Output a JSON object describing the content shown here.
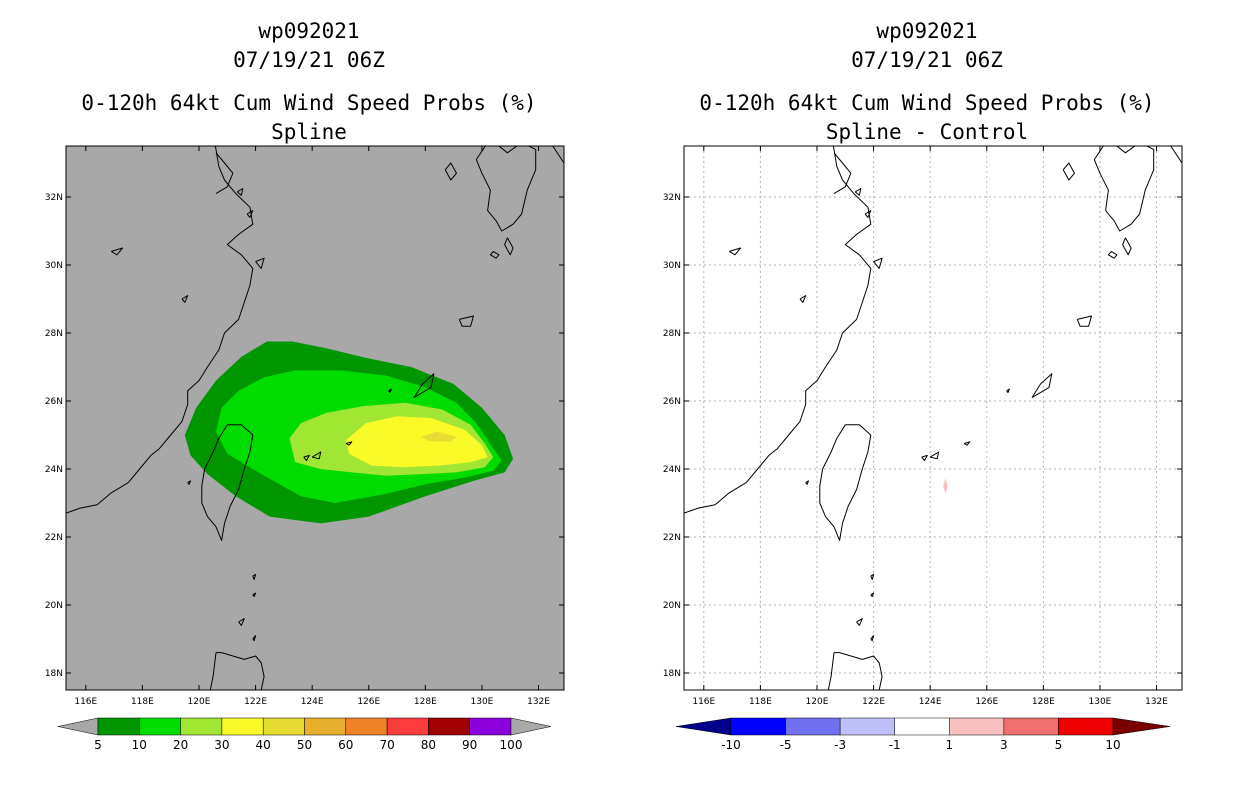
{
  "panels": [
    {
      "id": "left",
      "title_lines": [
        "wp092021",
        "07/19/21 06Z",
        "0-120h 64kt Cum Wind Speed Probs (%)",
        "Spline"
      ],
      "background": "#a8a8a8",
      "grid": false,
      "lat_ticks": [
        "32N",
        "30N",
        "28N",
        "26N",
        "24N",
        "22N",
        "20N",
        "18N"
      ],
      "lon_ticks": [
        "116E",
        "118E",
        "120E",
        "122E",
        "124E",
        "126E",
        "128E",
        "130E",
        "132E"
      ],
      "colorbar": {
        "colors": [
          "#009600",
          "#00dc00",
          "#a0e632",
          "#fafa28",
          "#e6dc32",
          "#e6af2d",
          "#f08228",
          "#fa3c3c",
          "#a00000",
          "#8c00dc"
        ],
        "end_left": "#a8a8a8",
        "end_right": "#a8a8a8",
        "labels": [
          "5",
          "10",
          "20",
          "30",
          "40",
          "50",
          "60",
          "70",
          "80",
          "90",
          "100"
        ]
      }
    },
    {
      "id": "right",
      "title_lines": [
        "wp092021",
        "07/19/21 06Z",
        "0-120h 64kt Cum Wind Speed Probs (%)",
        "Spline - Control"
      ],
      "background": "#ffffff",
      "grid": true,
      "lat_ticks": [
        "32N",
        "30N",
        "28N",
        "26N",
        "24N",
        "22N",
        "20N",
        "18N"
      ],
      "lon_ticks": [
        "116E",
        "118E",
        "120E",
        "122E",
        "124E",
        "126E",
        "128E",
        "130E",
        "132E"
      ],
      "colorbar": {
        "colors": [
          "#0000ff",
          "#7070f0",
          "#c0c0f8",
          "#ffffff",
          "#f8c0c0",
          "#f07070",
          "#f00000"
        ],
        "end_left": "#00008c",
        "end_right": "#780000",
        "labels": [
          "-10",
          "-5",
          "-3",
          "-1",
          "1",
          "3",
          "5",
          "10"
        ]
      }
    }
  ],
  "chart_data": {
    "type": "heatmap",
    "storm_id": "wp092021",
    "valid_time": "07/19/21 06Z",
    "product": "0-120h 64kt Cum Wind Speed Probs (%)",
    "lat_range": [
      17.5,
      33.5
    ],
    "lon_range": [
      115.3,
      132.9
    ],
    "contour_levels_pct": [
      5,
      10,
      20,
      30,
      40,
      50,
      60,
      70,
      80,
      90,
      100
    ],
    "left_panel": {
      "title": "Spline",
      "contours": [
        {
          "level": 5,
          "polygon": [
            [
              119.5,
              25.0
            ],
            [
              119.9,
              25.8
            ],
            [
              120.6,
              26.6
            ],
            [
              121.5,
              27.3
            ],
            [
              122.4,
              27.75
            ],
            [
              123.3,
              27.75
            ],
            [
              124.5,
              27.55
            ],
            [
              126.0,
              27.25
            ],
            [
              127.5,
              27.0
            ],
            [
              129.0,
              26.5
            ],
            [
              130.0,
              25.8
            ],
            [
              130.8,
              25.0
            ],
            [
              131.1,
              24.3
            ],
            [
              130.8,
              23.9
            ],
            [
              129.7,
              23.65
            ],
            [
              128.0,
              23.2
            ],
            [
              126.0,
              22.6
            ],
            [
              124.3,
              22.4
            ],
            [
              122.5,
              22.6
            ],
            [
              121.3,
              23.2
            ],
            [
              120.3,
              23.85
            ],
            [
              119.7,
              24.4
            ]
          ]
        },
        {
          "level": 10,
          "polygon": [
            [
              120.6,
              25.1
            ],
            [
              120.8,
              25.8
            ],
            [
              121.4,
              26.3
            ],
            [
              122.3,
              26.7
            ],
            [
              123.4,
              26.9
            ],
            [
              125.0,
              26.9
            ],
            [
              126.6,
              26.75
            ],
            [
              128.0,
              26.4
            ],
            [
              129.1,
              25.95
            ],
            [
              129.8,
              25.35
            ],
            [
              130.4,
              24.6
            ],
            [
              130.7,
              24.25
            ],
            [
              130.4,
              23.95
            ],
            [
              129.4,
              23.75
            ],
            [
              128.0,
              23.55
            ],
            [
              126.5,
              23.25
            ],
            [
              124.8,
              23.0
            ],
            [
              123.6,
              23.2
            ],
            [
              122.3,
              23.8
            ],
            [
              121.0,
              24.45
            ]
          ]
        },
        {
          "level": 20,
          "polygon": [
            [
              123.2,
              24.9
            ],
            [
              123.6,
              25.35
            ],
            [
              124.5,
              25.65
            ],
            [
              125.8,
              25.85
            ],
            [
              127.3,
              25.95
            ],
            [
              128.6,
              25.75
            ],
            [
              129.6,
              25.3
            ],
            [
              130.1,
              24.75
            ],
            [
              130.4,
              24.35
            ],
            [
              130.1,
              24.05
            ],
            [
              129.1,
              23.9
            ],
            [
              127.9,
              23.85
            ],
            [
              126.6,
              23.8
            ],
            [
              125.4,
              23.9
            ],
            [
              124.3,
              24.0
            ],
            [
              123.4,
              24.2
            ]
          ]
        },
        {
          "level": 30,
          "polygon": [
            [
              125.2,
              24.85
            ],
            [
              125.9,
              25.35
            ],
            [
              127.0,
              25.55
            ],
            [
              128.2,
              25.5
            ],
            [
              129.4,
              25.15
            ],
            [
              130.0,
              24.7
            ],
            [
              130.2,
              24.35
            ],
            [
              129.6,
              24.2
            ],
            [
              128.5,
              24.1
            ],
            [
              127.2,
              24.05
            ],
            [
              126.1,
              24.1
            ],
            [
              125.3,
              24.45
            ]
          ]
        },
        {
          "level": 40,
          "polygon": [
            [
              127.85,
              24.95
            ],
            [
              128.4,
              25.1
            ],
            [
              129.1,
              24.95
            ],
            [
              128.9,
              24.8
            ],
            [
              128.1,
              24.82
            ]
          ]
        }
      ]
    },
    "right_panel": {
      "title": "Spline - Control",
      "contours": [
        {
          "level": 1,
          "polygon": [
            [
              124.54,
              23.73
            ],
            [
              124.62,
              23.5
            ],
            [
              124.54,
              23.27
            ],
            [
              124.46,
              23.5
            ]
          ]
        }
      ]
    }
  }
}
